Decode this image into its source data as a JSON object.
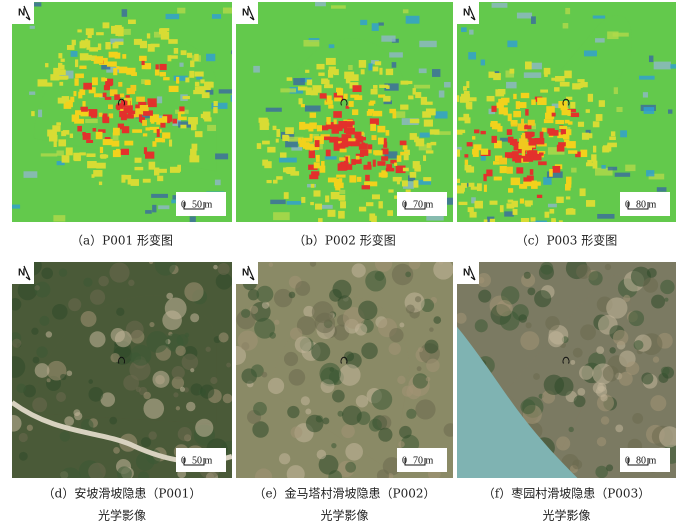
{
  "panels": [
    {
      "north": "N",
      "scale": [
        "0",
        "50 m"
      ],
      "caption": [
        "（a）P001 形变图"
      ]
    },
    {
      "north": "N",
      "scale": [
        "0",
        "70 m"
      ],
      "caption": [
        "（b）P002 形变图"
      ]
    },
    {
      "north": "N",
      "scale": [
        "0",
        "80 m"
      ],
      "caption": [
        "（c）P003 形变图"
      ]
    },
    {
      "north": "N",
      "scale": [
        "0",
        "50 m"
      ],
      "caption": [
        "（d）安坡滑坡隐患（P001）",
        "光学影像"
      ]
    },
    {
      "north": "N",
      "scale": [
        "0",
        "70 m"
      ],
      "caption": [
        "（e）金马塔村滑坡隐患（P002）",
        "光学影像"
      ]
    },
    {
      "north": "N",
      "scale": [
        "0",
        "80 m"
      ],
      "caption": [
        "（f）枣园村滑坡隐患（P003）",
        "光学影像"
      ]
    }
  ]
}
